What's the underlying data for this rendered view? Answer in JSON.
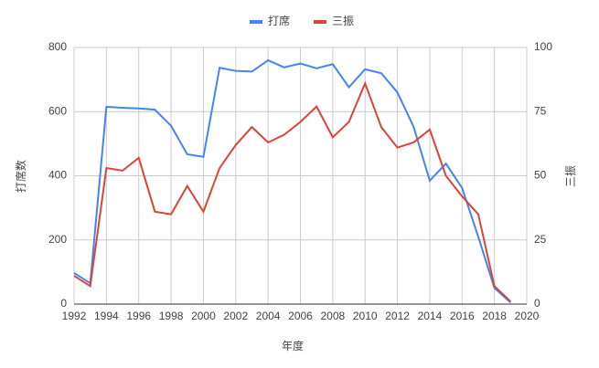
{
  "chart_data": {
    "type": "line",
    "x": [
      1992,
      1993,
      1994,
      1995,
      1996,
      1997,
      1998,
      1999,
      2000,
      2001,
      2002,
      2003,
      2004,
      2005,
      2006,
      2007,
      2008,
      2009,
      2010,
      2011,
      2012,
      2013,
      2014,
      2015,
      2016,
      2017,
      2018,
      2019
    ],
    "series": [
      {
        "name": "打席",
        "color": "#4285f4",
        "values": [
          97,
          65,
          615,
          612,
          610,
          606,
          556,
          467,
          459,
          737,
          727,
          725,
          760,
          738,
          750,
          735,
          748,
          676,
          732,
          720,
          660,
          553,
          385,
          438,
          362,
          210,
          50,
          5
        ]
      },
      {
        "name": "三振",
        "color": "#db4437",
        "axis": "y2",
        "values": [
          11,
          7,
          53,
          52,
          57,
          36,
          35,
          46,
          36,
          53,
          62,
          69,
          63,
          66,
          71,
          77,
          65,
          71,
          86,
          69,
          61,
          63,
          68,
          50,
          42,
          35,
          7,
          1
        ]
      }
    ],
    "xlabel": "年度",
    "ylabel": "打席数",
    "y2label": "三振",
    "xlim": [
      1992,
      2020
    ],
    "xticks": [
      1992,
      1994,
      1996,
      1998,
      2000,
      2002,
      2004,
      2006,
      2008,
      2010,
      2012,
      2014,
      2016,
      2018,
      2020
    ],
    "ylim": [
      0,
      800
    ],
    "yticks": [
      0,
      200,
      400,
      600,
      800
    ],
    "y2lim": [
      0,
      100
    ],
    "y2ticks": [
      0,
      25,
      50,
      75,
      100
    ],
    "grid": true,
    "legend": "top"
  }
}
